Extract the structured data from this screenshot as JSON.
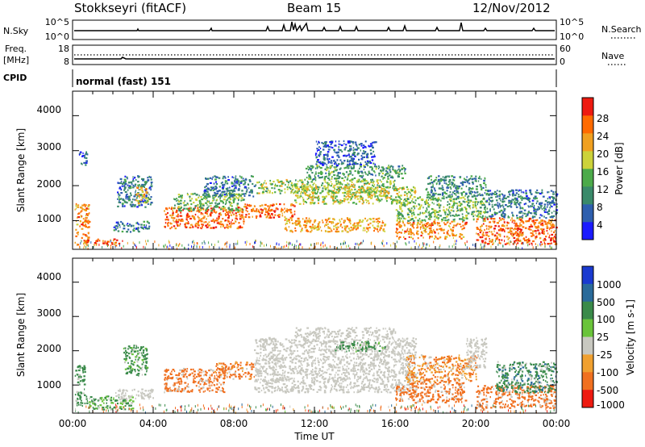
{
  "header": {
    "station": "Stokkseyri (fitACF)",
    "beam": "Beam 15",
    "date": "12/Nov/2012"
  },
  "strips": {
    "nsky_label": "N.Sky",
    "nsky_ticks": [
      "10^5",
      "10^0"
    ],
    "nsearch_label": "N.Search",
    "nsearch_ticks": [
      "10^5",
      "10^0"
    ],
    "freq_label_1": "Freq.",
    "freq_label_2": "[MHz]",
    "freq_ticks": [
      "18",
      "8"
    ],
    "nave_label": "Nave",
    "nave_ticks": [
      "60",
      "0"
    ],
    "cpid_label": "CPID",
    "cpid_value": "normal (fast) 151"
  },
  "colors": {
    "power_scale": [
      "#1a1aff",
      "#2e5fae",
      "#3a8a6a",
      "#4caa4a",
      "#ccd23a",
      "#f0a020",
      "#ff6a00",
      "#ee1a10"
    ],
    "velocity_scale": [
      "#1a3ad0",
      "#2a6a9a",
      "#3a8a4a",
      "#6ac43a",
      "#c8c8c0",
      "#f0a030",
      "#f07020",
      "#ee1a10"
    ],
    "ground_scatter": "#c8c8c0"
  },
  "chart_data": [
    {
      "type": "heatmap",
      "name": "Power",
      "xlabel": "",
      "ylabel": "Slant Range [km]",
      "x_ticks": [
        "00:00",
        "04:00",
        "08:00",
        "12:00",
        "16:00",
        "20:00",
        "00:00"
      ],
      "y_ticks": [
        "1000",
        "2000",
        "3000",
        "4000"
      ],
      "xlim": [
        0,
        24
      ],
      "ylim": [
        180,
        4700
      ],
      "colorbar": {
        "label": "Power [dB]",
        "ticks": [
          "4",
          "8",
          "12",
          "16",
          "20",
          "24",
          "28"
        ],
        "range": [
          0,
          32
        ]
      },
      "regions": [
        {
          "t0": 0.1,
          "t1": 0.8,
          "r0": 300,
          "r1": 1500,
          "v": 24
        },
        {
          "t0": 0.3,
          "t1": 0.7,
          "r0": 2600,
          "r1": 3000,
          "v": 6
        },
        {
          "t0": 1.0,
          "t1": 2.5,
          "r0": 300,
          "r1": 500,
          "v": 26
        },
        {
          "t0": 2.0,
          "t1": 3.8,
          "r0": 700,
          "r1": 1000,
          "v": 8
        },
        {
          "t0": 2.2,
          "t1": 3.9,
          "r0": 1400,
          "r1": 2300,
          "v": 8
        },
        {
          "t0": 3.1,
          "t1": 3.7,
          "r0": 1500,
          "r1": 2000,
          "v": 20
        },
        {
          "t0": 4.5,
          "t1": 8.5,
          "r0": 800,
          "r1": 1400,
          "v": 26
        },
        {
          "t0": 5.0,
          "t1": 8.5,
          "r0": 1300,
          "r1": 1800,
          "v": 14
        },
        {
          "t0": 6.5,
          "t1": 9.0,
          "r0": 1700,
          "r1": 2300,
          "v": 8
        },
        {
          "t0": 8.5,
          "t1": 11.0,
          "r0": 1100,
          "r1": 1500,
          "v": 26
        },
        {
          "t0": 9.0,
          "t1": 16.0,
          "r0": 1800,
          "r1": 2200,
          "v": 16
        },
        {
          "t0": 11.0,
          "t1": 17.0,
          "r0": 1500,
          "r1": 2000,
          "v": 18
        },
        {
          "t0": 11.5,
          "t1": 16.5,
          "r0": 2200,
          "r1": 2600,
          "v": 12
        },
        {
          "t0": 10.5,
          "t1": 15.5,
          "r0": 700,
          "r1": 1100,
          "v": 22
        },
        {
          "t0": 12.0,
          "t1": 15.0,
          "r0": 2600,
          "r1": 3300,
          "v": 6
        },
        {
          "t0": 16.0,
          "t1": 19.5,
          "r0": 500,
          "r1": 1000,
          "v": 24
        },
        {
          "t0": 16.0,
          "t1": 20.5,
          "r0": 1000,
          "r1": 1700,
          "v": 14
        },
        {
          "t0": 17.5,
          "t1": 20.5,
          "r0": 1700,
          "r1": 2300,
          "v": 10
        },
        {
          "t0": 20.0,
          "t1": 24.0,
          "r0": 350,
          "r1": 1100,
          "v": 26
        },
        {
          "t0": 20.5,
          "t1": 24.0,
          "r0": 1100,
          "r1": 1900,
          "v": 8
        }
      ]
    },
    {
      "type": "heatmap",
      "name": "Velocity",
      "xlabel": "Time UT",
      "ylabel": "Slant Range [km]",
      "x_ticks": [
        "00:00",
        "04:00",
        "08:00",
        "12:00",
        "16:00",
        "20:00",
        "00:00"
      ],
      "y_ticks": [
        "1000",
        "2000",
        "3000",
        "4000"
      ],
      "xlim": [
        0,
        24
      ],
      "ylim": [
        180,
        4700
      ],
      "colorbar": {
        "label": "Velocity [m s-1]",
        "ticks": [
          "1000",
          "500",
          "100",
          "25",
          "-25",
          "-100",
          "-500",
          "-1000"
        ]
      },
      "regions": [
        {
          "t0": 0.1,
          "t1": 0.6,
          "r0": 400,
          "r1": 1600,
          "v": 200
        },
        {
          "t0": 0.6,
          "t1": 3.0,
          "r0": 300,
          "r1": 700,
          "v": 100
        },
        {
          "t0": 2.5,
          "t1": 3.7,
          "r0": 1300,
          "r1": 2200,
          "v": 150
        },
        {
          "t0": 2.0,
          "t1": 4.0,
          "r0": 600,
          "r1": 900,
          "v": 0
        },
        {
          "t0": 4.5,
          "t1": 7.5,
          "r0": 800,
          "r1": 1500,
          "v": -200
        },
        {
          "t0": 7.0,
          "t1": 9.0,
          "r0": 1200,
          "r1": 1700,
          "v": -150
        },
        {
          "t0": 9.0,
          "t1": 17.0,
          "r0": 800,
          "r1": 2400,
          "v": 0
        },
        {
          "t0": 11.0,
          "t1": 16.0,
          "r0": 2400,
          "r1": 2700,
          "v": 0
        },
        {
          "t0": 13.0,
          "t1": 15.5,
          "r0": 2000,
          "r1": 2300,
          "v": 150
        },
        {
          "t0": 16.0,
          "t1": 19.5,
          "r0": 500,
          "r1": 1100,
          "v": -300
        },
        {
          "t0": 16.5,
          "t1": 20.0,
          "r0": 1100,
          "r1": 1900,
          "v": -100
        },
        {
          "t0": 19.5,
          "t1": 20.5,
          "r0": 1500,
          "r1": 2400,
          "v": 0
        },
        {
          "t0": 20.0,
          "t1": 24.0,
          "r0": 350,
          "r1": 1000,
          "v": -300
        },
        {
          "t0": 21.0,
          "t1": 24.0,
          "r0": 800,
          "r1": 1700,
          "v": 400
        }
      ]
    }
  ]
}
